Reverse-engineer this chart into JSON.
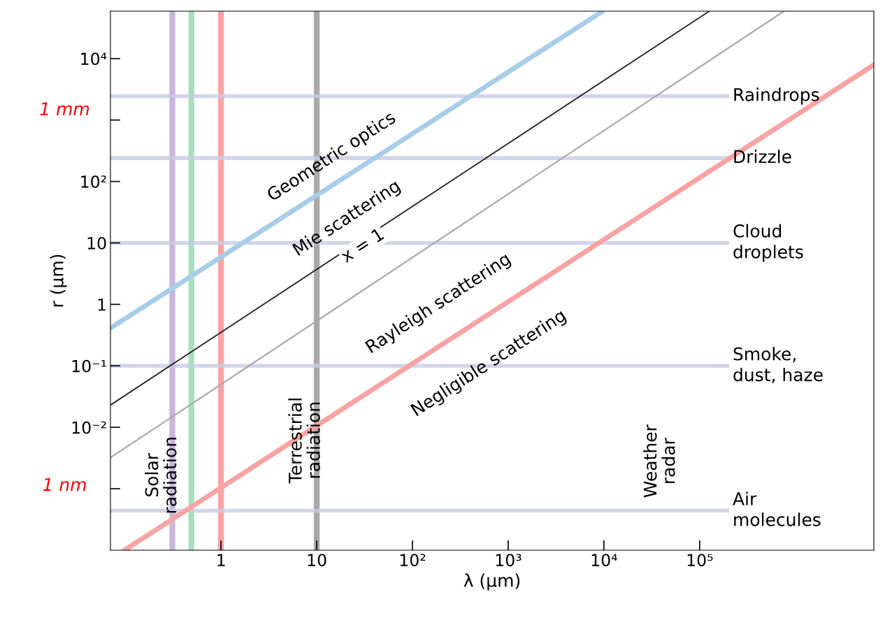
{
  "chart_data": {
    "type": "line",
    "xlabel": "λ (μm)",
    "ylabel": "r (μm)",
    "log": "xy",
    "xlim": [
      0.07,
      6600000
    ],
    "ylim": [
      0.0001,
      59000
    ],
    "xticks": [
      1,
      10,
      {
        "value": 100,
        "label": "10²"
      },
      {
        "value": 1000,
        "label": "10³"
      },
      {
        "value": 10000,
        "label": "10⁴"
      },
      {
        "value": 100000,
        "label": "10⁵"
      }
    ],
    "yticks": [
      {
        "value": 0.001,
        "label": null
      },
      {
        "value": 0.01,
        "label": "10⁻²"
      },
      {
        "value": 0.1,
        "label": "10⁻¹"
      },
      1,
      10,
      {
        "value": 100,
        "label": "10²"
      },
      {
        "value": 1000,
        "label": null
      },
      {
        "value": 10000,
        "label": "10⁴"
      }
    ],
    "grid": false,
    "legend": false,
    "series": [
      {
        "color": "#a8cde8",
        "x": [
          0.07,
          9700
        ],
        "values": [
          0.41,
          59000
        ]
      },
      {
        "color": "#222222",
        "x": [
          0.07,
          126000
        ],
        "values": [
          0.023,
          59000
        ]
      },
      {
        "color": "#aaaaaa",
        "x": [
          0.07,
          760000
        ],
        "values": [
          0.0032,
          59000
        ]
      },
      {
        "color": "#f9a3a3",
        "x": [
          0.098,
          6600000
        ],
        "values": [
          0.0001,
          7900
        ]
      }
    ],
    "ref_lines": [
      {
        "axis": "x",
        "value": 0.31,
        "color": "#c9b6de"
      },
      {
        "axis": "x",
        "value": 0.49,
        "color": "#a8e0bd"
      },
      {
        "axis": "x",
        "value": 1,
        "color": "#f9a3a3"
      },
      {
        "axis": "x",
        "value": 10,
        "color": "#a9a9a9"
      },
      {
        "axis": "y",
        "value": 2450,
        "label": "Raindrops",
        "color": "#c8cbe3"
      },
      {
        "axis": "y",
        "value": 240,
        "label": "Drizzle",
        "color": "#c8cbe3"
      },
      {
        "axis": "y",
        "value": 10,
        "label": "Cloud\ndroplets",
        "color": "#c8cbe3"
      },
      {
        "axis": "y",
        "value": 0.1,
        "label": "Smoke,\ndust, haze",
        "color": "#c8cbe3"
      },
      {
        "axis": "y",
        "value": 0.00044,
        "label": "Air\nmolecules",
        "color": "#c8cbe3"
      }
    ],
    "annotations": [
      "Geometric optics",
      "Mie scattering",
      "x = 1",
      "Rayleigh scattering",
      "Negligible scattering",
      "Solar\nradiation",
      "Terrestrial\nradiation",
      "Weather\nradar",
      "1 mm",
      "1 nm"
    ]
  }
}
